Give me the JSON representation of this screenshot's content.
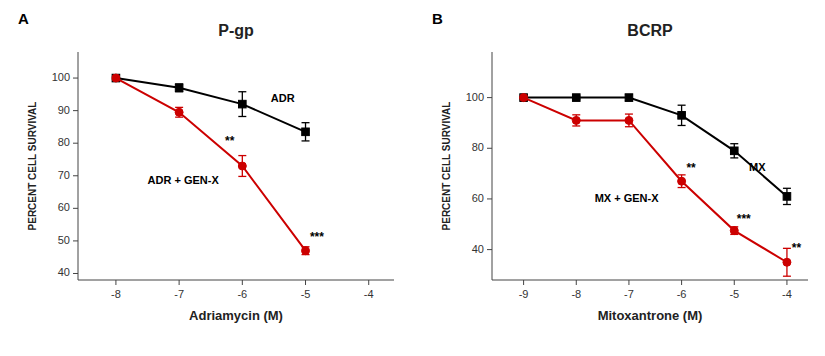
{
  "chart_data": [
    {
      "type": "line",
      "title": "P-gp",
      "x_label": "Adriamycin (M)",
      "y_label": "PERCENT CELL SURVIVAL",
      "xlim": [
        -8.6,
        -3.6
      ],
      "ylim": [
        38,
        108
      ],
      "xticks": [
        -8,
        -7,
        -6,
        -5,
        -4
      ],
      "yticks": [
        40,
        50,
        60,
        70,
        80,
        90,
        100
      ],
      "x": [
        -8,
        -7,
        -6,
        -5
      ],
      "series": [
        {
          "name": "ADR",
          "color": "#000000",
          "marker": "square",
          "values": [
            100,
            97,
            92,
            83.5
          ],
          "errors": [
            0.5,
            1.2,
            3.8,
            2.8
          ],
          "label_x": -5.55,
          "label_y": 93.5
        },
        {
          "name": "ADR + GEN-X",
          "color": "#cc0000",
          "marker": "circle",
          "values": [
            100,
            89.5,
            73,
            47
          ],
          "errors": [
            0.4,
            1.5,
            3.2,
            1.2
          ],
          "label_x": -7.5,
          "label_y": 68.5
        }
      ],
      "annotations": [
        {
          "text": "A"
        },
        {
          "text": "**",
          "x": -6.2,
          "y": 79.5
        },
        {
          "text": "***",
          "x": -4.82,
          "y": 50
        }
      ]
    },
    {
      "type": "line",
      "title": "BCRP",
      "x_label": "Mitoxantrone (M)",
      "y_label": "PERCENT CELL SURVIVAL",
      "xlim": [
        -9.6,
        -3.6
      ],
      "ylim": [
        28,
        118
      ],
      "xticks": [
        -9,
        -8,
        -7,
        -6,
        -5,
        -4
      ],
      "yticks": [
        40,
        60,
        80,
        100
      ],
      "x": [
        -9,
        -8,
        -7,
        -6,
        -5,
        -4
      ],
      "series": [
        {
          "name": "MX",
          "color": "#000000",
          "marker": "square",
          "values": [
            100,
            100,
            100,
            93,
            79,
            61
          ],
          "errors": [
            0.4,
            0.6,
            1.2,
            4.0,
            2.8,
            3.2
          ],
          "label_x": -4.72,
          "label_y": 72
        },
        {
          "name": "MX + GEN-X",
          "color": "#cc0000",
          "marker": "circle",
          "values": [
            100,
            91,
            91,
            67,
            47.5,
            35
          ],
          "errors": [
            0.4,
            2.2,
            2.5,
            2.5,
            1.5,
            5.5
          ],
          "label_x": -7.65,
          "label_y": 60
        }
      ],
      "annotations": [
        {
          "text": "B"
        },
        {
          "text": "**",
          "x": -5.82,
          "y": 70.5
        },
        {
          "text": "***",
          "x": -4.82,
          "y": 50.5
        },
        {
          "text": "**",
          "x": -3.82,
          "y": 39
        }
      ]
    }
  ]
}
